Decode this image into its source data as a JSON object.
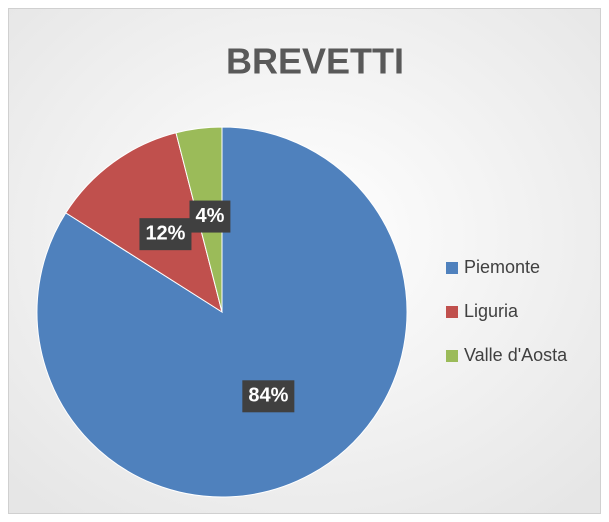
{
  "chart_data": {
    "type": "pie",
    "title": "BREVETTI",
    "categories": [
      "Piemonte",
      "Liguria",
      "Valle d'Aosta"
    ],
    "values": [
      84,
      12,
      4
    ],
    "value_labels": [
      "84%",
      "12%",
      "4%"
    ],
    "colors": [
      "#4f81bd",
      "#c0504d",
      "#9bbb59"
    ],
    "legend": "right"
  }
}
